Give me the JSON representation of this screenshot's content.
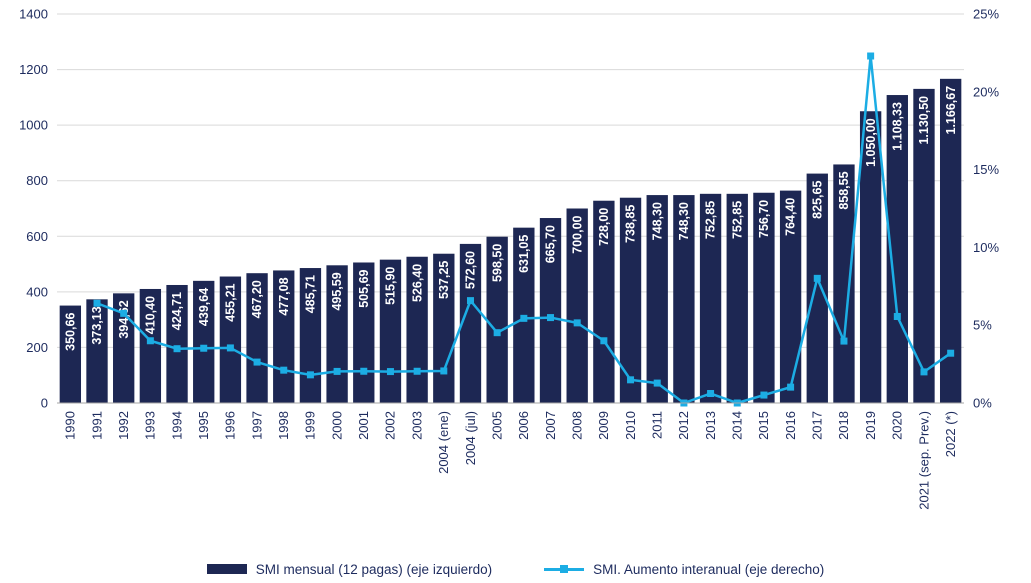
{
  "colors": {
    "bar": "#1d2753",
    "line": "#1cade4",
    "axis_text": "#1d2b5e",
    "bar_label_text": "#ffffff",
    "grid": "#d9d9d9",
    "axis_line": "#a6a6a6"
  },
  "legend": {
    "bar_label": "SMI mensual (12 pagas) (eje izquierdo)",
    "line_label": "SMI. Aumento interanual (eje derecho)"
  },
  "chart_data": {
    "type": "bar",
    "subtype": "bar-with-line-overlay",
    "title": "",
    "grid": true,
    "legend_position": "bottom",
    "categories": [
      "1990",
      "1991",
      "1992",
      "1993",
      "1994",
      "1995",
      "1996",
      "1997",
      "1998",
      "1999",
      "2000",
      "2001",
      "2002",
      "2003",
      "2004 (ene)",
      "2004 (jul)",
      "2005",
      "2006",
      "2007",
      "2008",
      "2009",
      "2010",
      "2011",
      "2012",
      "2013",
      "2014",
      "2015",
      "2016",
      "2017",
      "2018",
      "2019",
      "2020",
      "2021 (sep. Prev.)",
      "2022 (*)"
    ],
    "left_axis": {
      "min": 0,
      "max": 1400,
      "ticks": [
        0,
        200,
        400,
        600,
        800,
        1000,
        1200,
        1400
      ],
      "tick_labels": [
        "0",
        "200",
        "400",
        "600",
        "800",
        "1000",
        "1200",
        "1400"
      ]
    },
    "right_axis": {
      "min": 0,
      "max": 25,
      "ticks": [
        0,
        5,
        10,
        15,
        20,
        25
      ],
      "tick_labels": [
        "0%",
        "5%",
        "10%",
        "15%",
        "20%",
        "25%"
      ]
    },
    "series": [
      {
        "name": "SMI mensual (12 pagas) (eje izquierdo)",
        "type": "bar",
        "axis": "left",
        "values": [
          350.66,
          373.13,
          394.62,
          410.4,
          424.71,
          439.64,
          455.21,
          467.2,
          477.08,
          485.71,
          495.59,
          505.69,
          515.9,
          526.4,
          537.25,
          572.6,
          598.5,
          631.05,
          665.7,
          700.0,
          728.0,
          738.85,
          748.3,
          748.3,
          752.85,
          752.85,
          756.7,
          764.4,
          825.65,
          858.55,
          1050.0,
          1108.33,
          1130.5,
          1166.67
        ],
        "labels": [
          "350,66",
          "373,13",
          "394,62",
          "410,40",
          "424,71",
          "439,64",
          "455,21",
          "467,20",
          "477,08",
          "485,71",
          "495,59",
          "505,69",
          "515,90",
          "526,40",
          "537,25",
          "572,60",
          "598,50",
          "631,05",
          "665,70",
          "700,00",
          "728,00",
          "738,85",
          "748,30",
          "748,30",
          "752,85",
          "752,85",
          "756,70",
          "764,40",
          "825,65",
          "858,55",
          "1.050,00",
          "1.108,33",
          "1.130,50",
          "1.166,67"
        ]
      },
      {
        "name": "SMI. Aumento interanual (eje derecho)",
        "type": "line",
        "axis": "right",
        "values": [
          null,
          6.41,
          5.76,
          4.0,
          3.49,
          3.52,
          3.54,
          2.63,
          2.11,
          1.81,
          2.03,
          2.04,
          2.02,
          2.04,
          2.06,
          6.58,
          4.52,
          5.44,
          5.49,
          5.15,
          4.0,
          1.49,
          1.28,
          0.0,
          0.61,
          0.0,
          0.51,
          1.02,
          8.01,
          3.98,
          22.3,
          5.56,
          2.0,
          3.2
        ]
      }
    ]
  }
}
